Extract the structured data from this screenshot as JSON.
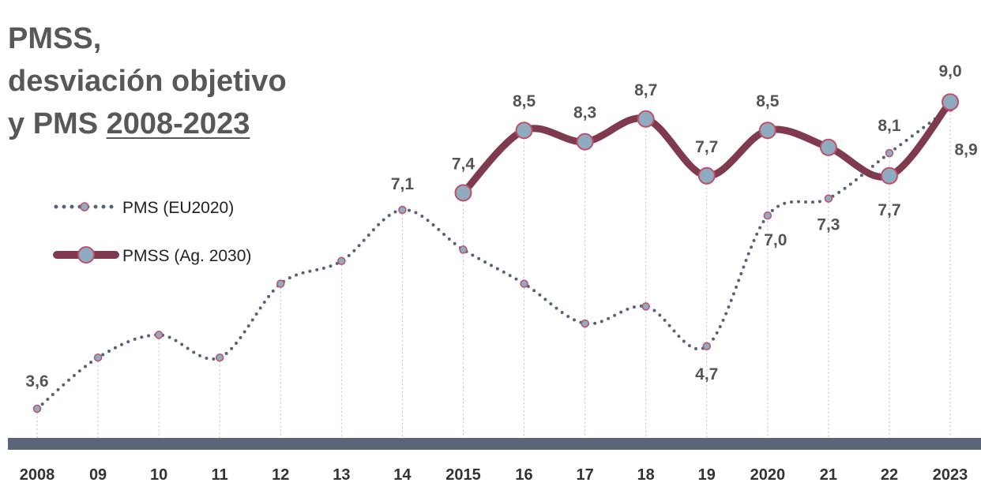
{
  "chart_data": {
    "type": "line",
    "title": [
      "PMSS,",
      "desviación objetivo",
      "y PMS"
    ],
    "title_underlined": "2008-2023",
    "categories": [
      "2008",
      "09",
      "10",
      "11",
      "12",
      "13",
      "14",
      "2015",
      "16",
      "17",
      "18",
      "19",
      "2020",
      "21",
      "22",
      "2023"
    ],
    "ylim": [
      3.0,
      9.3
    ],
    "grid": "vertical dotted drop lines",
    "legend_position": "left",
    "series": [
      {
        "name": "PMS (EU2020)",
        "style": "dotted",
        "color": "#56627a",
        "values": [
          3.6,
          4.5,
          4.9,
          4.5,
          5.8,
          6.2,
          7.1,
          6.4,
          5.8,
          5.1,
          5.4,
          4.7,
          7.0,
          7.3,
          8.1,
          8.9
        ],
        "labels": [
          "3,6",
          null,
          null,
          null,
          null,
          null,
          "7,1",
          null,
          null,
          null,
          null,
          "4,7",
          "7,0",
          "7,3",
          "8,1",
          "8,9"
        ]
      },
      {
        "name": "PMSS (Ag. 2030)",
        "style": "thick",
        "color": "#7f3a4e",
        "values": [
          null,
          null,
          null,
          null,
          null,
          null,
          null,
          7.4,
          8.5,
          8.3,
          8.7,
          7.7,
          8.5,
          8.2,
          7.7,
          9.0
        ],
        "labels": [
          null,
          null,
          null,
          null,
          null,
          null,
          null,
          "7,4",
          "8,5",
          "8,3",
          "8,7",
          "7,7",
          "8,5",
          null,
          "7,7",
          "9,0"
        ]
      }
    ],
    "colors": {
      "marker_fill": "#8fabbf",
      "marker_stroke": "#c0506a",
      "axis_bar": "#5b6577",
      "text": "#585858"
    }
  }
}
